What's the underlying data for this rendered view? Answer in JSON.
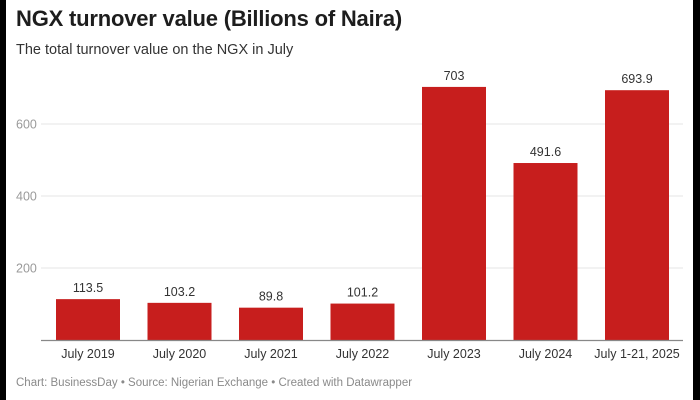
{
  "header": {
    "title": "NGX turnover value (Billions of Naira)",
    "subtitle": "The total turnover value on the NGX in July"
  },
  "footer": {
    "text": "Chart: BusinessDay • Source: Nigerian Exchange  • Created with Datawrapper"
  },
  "colors": {
    "bar": "#c71e1d",
    "grid": "#e6e6e6",
    "axis": "#888888"
  },
  "chart_data": {
    "type": "bar",
    "title": "NGX turnover value (Billions of Naira)",
    "subtitle": "The total turnover value on the NGX in July",
    "xlabel": "",
    "ylabel": "",
    "categories": [
      "July 2019",
      "July 2020",
      "July 2021",
      "July 2022",
      "July 2023",
      "July 2024",
      "July 1-21, 2025"
    ],
    "values": [
      113.5,
      103.2,
      89.8,
      101.2,
      703,
      491.6,
      693.9
    ],
    "value_labels": [
      "113.5",
      "103.2",
      "89.8",
      "101.2",
      "703",
      "491.6",
      "693.9"
    ],
    "yticks": [
      200,
      400,
      600
    ],
    "ylim": [
      0,
      703
    ],
    "grid": true,
    "legend": "none"
  }
}
